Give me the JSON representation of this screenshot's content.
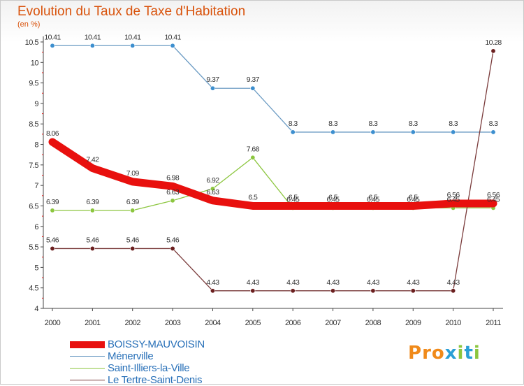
{
  "header": {
    "title": "Evolution du Taux de Taxe d'Habitation",
    "unit": "(en %)"
  },
  "brand": {
    "text": "Proxiti",
    "colors": [
      "#f08a1a",
      "#f08a1a",
      "#f08a1a",
      "#2a9fd6",
      "#8cc63f",
      "#2a9fd6",
      "#8cc63f"
    ]
  },
  "chart_data": {
    "type": "line",
    "x": [
      "2000",
      "2001",
      "2002",
      "2003",
      "2004",
      "2005",
      "2006",
      "2007",
      "2008",
      "2009",
      "2010",
      "2011"
    ],
    "ylim": [
      4,
      10.5
    ],
    "yticks": [
      "4",
      "4.5",
      "5",
      "5.5",
      "6",
      "6.5",
      "7",
      "7.5",
      "8",
      "8.5",
      "9",
      "9.5",
      "10",
      "10.5"
    ],
    "grid": false,
    "legend_position": "bottom-left",
    "series": [
      {
        "name": "Ménerville",
        "color": "#6b9bc3",
        "marker": "#3d8fcf",
        "thick": false,
        "values": [
          10.41,
          10.41,
          10.41,
          10.41,
          9.37,
          9.37,
          8.3,
          8.3,
          8.3,
          8.3,
          8.3,
          8.3
        ],
        "labels": [
          "10.41",
          "10.41",
          "10.41",
          "10.41",
          "9.37",
          "9.37",
          "8.3",
          "8.3",
          "8.3",
          "8.3",
          "8.3",
          "8.3"
        ]
      },
      {
        "name": "Saint-Illiers-la-Ville",
        "color": "#8cc63f",
        "marker": "#8cc63f",
        "thick": false,
        "values": [
          6.39,
          6.39,
          6.39,
          6.63,
          6.92,
          7.68,
          6.45,
          6.45,
          6.45,
          6.45,
          6.45,
          6.45
        ],
        "labels": [
          "6.39",
          "6.39",
          "6.39",
          "6.63",
          "6.92",
          "7.68",
          "6.45",
          "6.45",
          "6.45",
          "6.45",
          "6.45",
          "6.45"
        ]
      },
      {
        "name": "Le Tertre-Saint-Denis",
        "color": "#7a3b3b",
        "marker": "#6b1f1f",
        "thick": false,
        "values": [
          5.46,
          5.46,
          5.46,
          5.46,
          4.43,
          4.43,
          4.43,
          4.43,
          4.43,
          4.43,
          4.43,
          10.28
        ],
        "labels": [
          "5.46",
          "5.46",
          "5.46",
          "5.46",
          "4.43",
          "4.43",
          "4.43",
          "4.43",
          "4.43",
          "4.43",
          "4.43",
          "10.28"
        ]
      },
      {
        "name": "BOISSY-MAUVOISIN",
        "color": "#e8100e",
        "marker": "#e8100e",
        "thick": true,
        "values": [
          8.06,
          7.42,
          7.09,
          6.98,
          6.63,
          6.5,
          6.5,
          6.5,
          6.5,
          6.5,
          6.56,
          6.56
        ],
        "labels": [
          "8.06",
          "7.42",
          "7.09",
          "6.98",
          "6.63",
          "6.5",
          "6.5",
          "6.5",
          "6.5",
          "6.5",
          "6.56",
          "6.56"
        ]
      }
    ],
    "legend_order": [
      "BOISSY-MAUVOISIN",
      "Ménerville",
      "Saint-Illiers-la-Ville",
      "Le Tertre-Saint-Denis"
    ]
  }
}
